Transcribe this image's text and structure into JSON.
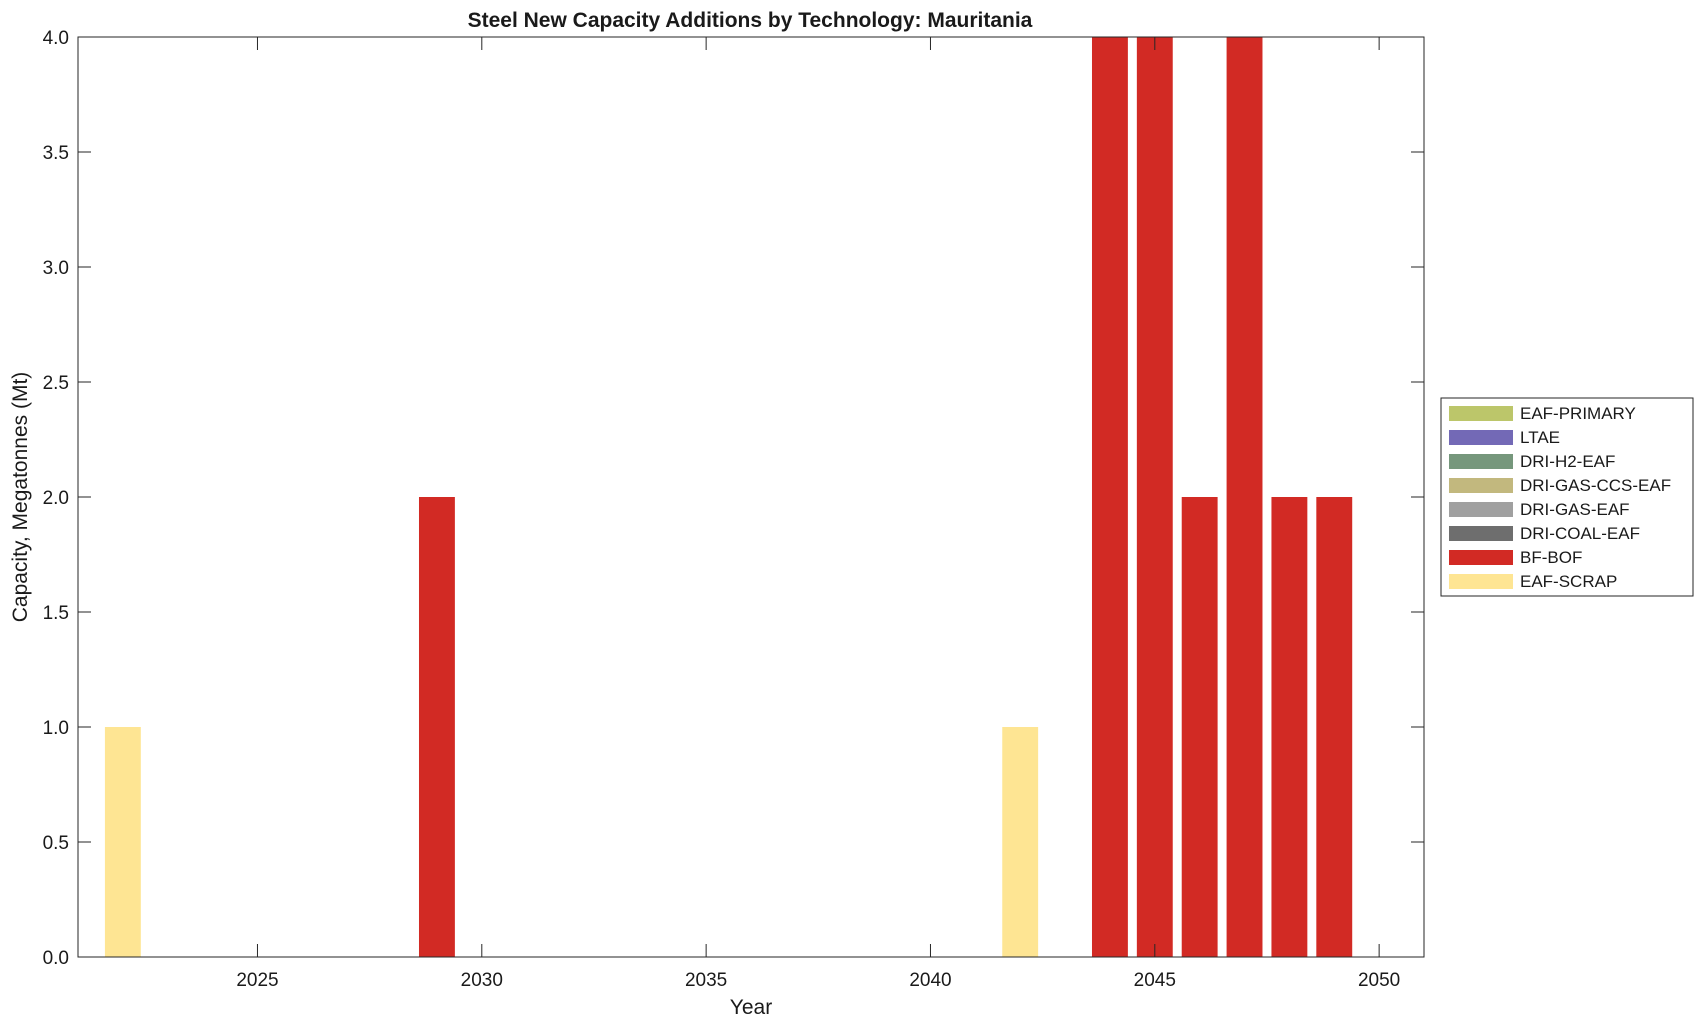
{
  "chart_data": {
    "type": "bar",
    "stacked": true,
    "title": "Steel New Capacity Additions by Technology: Mauritania",
    "xlabel": "Year",
    "ylabel": "Capacity, Megatonnes (Mt)",
    "xlim": [
      2021,
      2051
    ],
    "ylim": [
      0,
      4
    ],
    "x_ticks": [
      2025,
      2030,
      2035,
      2040,
      2045,
      2050
    ],
    "y_ticks": [
      0,
      0.5,
      1,
      1.5,
      2,
      2.5,
      3,
      3.5,
      4
    ],
    "y_tick_labels": [
      "0.0",
      "0.5",
      "1.0",
      "1.5",
      "2.0",
      "2.5",
      "3.0",
      "3.5",
      "4.0"
    ],
    "legend_position": "right",
    "categories": [
      2022,
      2029,
      2042,
      2044,
      2045,
      2046,
      2047,
      2048,
      2049
    ],
    "series": [
      {
        "name": "EAF-PRIMARY",
        "color": "#bcc66a",
        "values": [
          0,
          0,
          0,
          0,
          0,
          0,
          0,
          0,
          0
        ]
      },
      {
        "name": "LTAE",
        "color": "#7369b6",
        "values": [
          0,
          0,
          0,
          0,
          0,
          0,
          0,
          0,
          0
        ]
      },
      {
        "name": "DRI-H2-EAF",
        "color": "#76977c",
        "values": [
          0,
          0,
          0,
          0,
          0,
          0,
          0,
          0,
          0
        ]
      },
      {
        "name": "DRI-GAS-CCS-EAF",
        "color": "#c2b87e",
        "values": [
          0,
          0,
          0,
          0,
          0,
          0,
          0,
          0,
          0
        ]
      },
      {
        "name": "DRI-GAS-EAF",
        "color": "#a0a0a0",
        "values": [
          0,
          0,
          0,
          0,
          0,
          0,
          0,
          0,
          0
        ]
      },
      {
        "name": "DRI-COAL-EAF",
        "color": "#6e6e6e",
        "values": [
          0,
          0,
          0,
          0,
          0,
          0,
          0,
          0,
          0
        ]
      },
      {
        "name": "BF-BOF",
        "color": "#d22a24",
        "values": [
          0,
          2,
          0,
          4,
          4,
          2,
          4,
          2,
          2
        ]
      },
      {
        "name": "EAF-SCRAP",
        "color": "#fee593",
        "values": [
          1,
          0,
          1,
          0,
          0,
          0,
          0,
          0,
          0
        ]
      }
    ]
  }
}
